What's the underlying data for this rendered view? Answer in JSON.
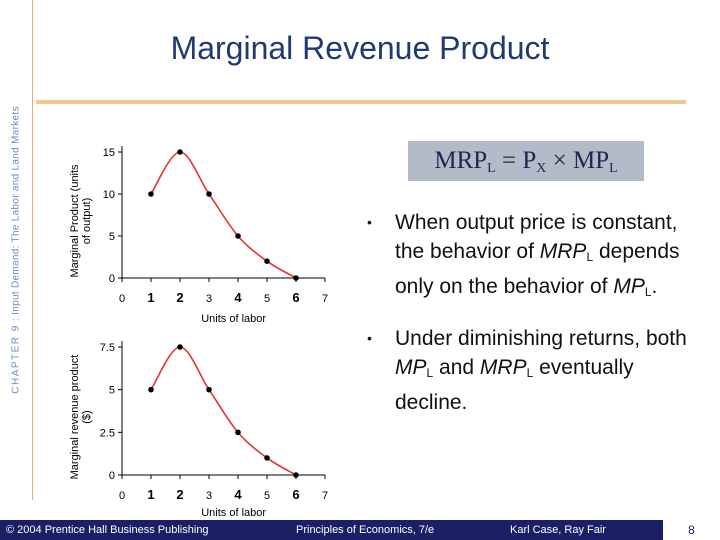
{
  "sidebar": {
    "chapter": "CHAPTER 9",
    "subtitle": "Input Demand: The Labor and Land Markets"
  },
  "title": "Marginal Revenue Product",
  "formula": {
    "mrp": "MRP",
    "sub_l": "L",
    "equals": " = P",
    "sub_x": "X",
    "times": " × MP",
    "sub_l2": "L"
  },
  "bullets": [
    {
      "t1": "When output price is constant, the behavior of ",
      "t2": "MRP",
      "sub1": "L",
      "t3": " depends only on the behavior of ",
      "t4": "MP",
      "sub2": "L",
      "t5": "."
    },
    {
      "t1": "Under diminishing returns, both ",
      "t2": "MP",
      "sub1": "L",
      "t3": " and ",
      "t4": "MRP",
      "sub2": "L",
      "t5": " eventually decline."
    }
  ],
  "footer": {
    "copyright": "© 2004 Prentice Hall Business Publishing",
    "book": "Principles of Economics, 7/e",
    "authors": "Karl Case, Ray Fair",
    "page": "8"
  },
  "colors": {
    "curve": "#e4342f",
    "title": "#1f3a70",
    "footer_bg": "#1a1f66",
    "formula_bg": "#b3bbc9",
    "accent_rule": "#f2c88a"
  },
  "chart_data": [
    {
      "type": "line",
      "x": [
        1,
        2,
        3,
        4,
        5,
        6
      ],
      "y": [
        10,
        15,
        10,
        5,
        2,
        0
      ],
      "xlabel": "Units of labor",
      "ylabel_lines": [
        "Marginal Product (units",
        "of output)"
      ],
      "xticks": [
        "0",
        "1",
        "2",
        "3",
        "4",
        "5",
        "6",
        "7"
      ],
      "bold_xticks": [
        "1",
        "2",
        "4",
        "6"
      ],
      "yticks": [
        "0",
        "5",
        "10",
        "15"
      ],
      "ylim": [
        0,
        15
      ],
      "xlim": [
        0,
        7
      ],
      "grid": false,
      "smooth": true
    },
    {
      "type": "line",
      "x": [
        1,
        2,
        3,
        4,
        5,
        6
      ],
      "y": [
        5,
        7.5,
        5,
        2.5,
        1,
        0
      ],
      "xlabel": "Units of labor",
      "ylabel_lines": [
        "Marginal revenue product",
        "($)"
      ],
      "xticks": [
        "0",
        "1",
        "2",
        "3",
        "4",
        "5",
        "6",
        "7"
      ],
      "bold_xticks": [
        "1",
        "2",
        "4",
        "6"
      ],
      "yticks": [
        "0",
        "2.5",
        "5",
        "7.5"
      ],
      "ylim": [
        0,
        7.5
      ],
      "xlim": [
        0,
        7
      ],
      "grid": false,
      "smooth": true
    }
  ]
}
